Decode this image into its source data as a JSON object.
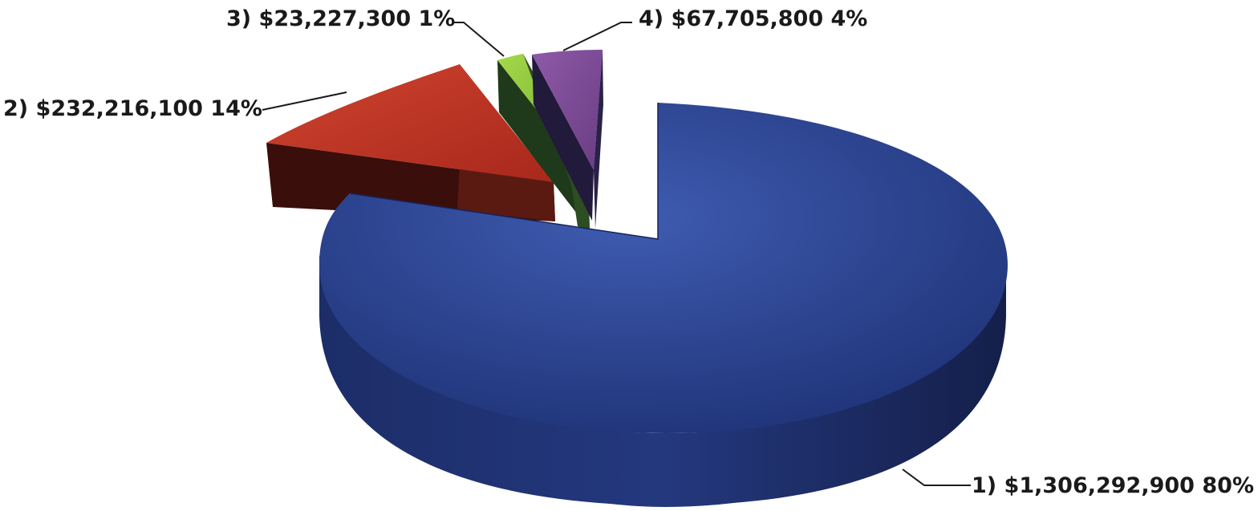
{
  "chart_data": {
    "type": "pie",
    "style": "3d-exploded",
    "title": "",
    "legend": "none",
    "slices": [
      {
        "label": "1) $1,306,292,900 80%",
        "value": 1306292900,
        "percent": 80,
        "color": "#2e4492"
      },
      {
        "label": "2) $232,216,100 14%",
        "value": 232216100,
        "percent": 14,
        "color": "#c0392b"
      },
      {
        "label": "3) $23,227,300 1%",
        "value": 23227300,
        "percent": 1,
        "color": "#8cc63f"
      },
      {
        "label": "4) $67,705,800 4%",
        "value": 67705800,
        "percent": 4,
        "color": "#7b4a93"
      }
    ]
  }
}
